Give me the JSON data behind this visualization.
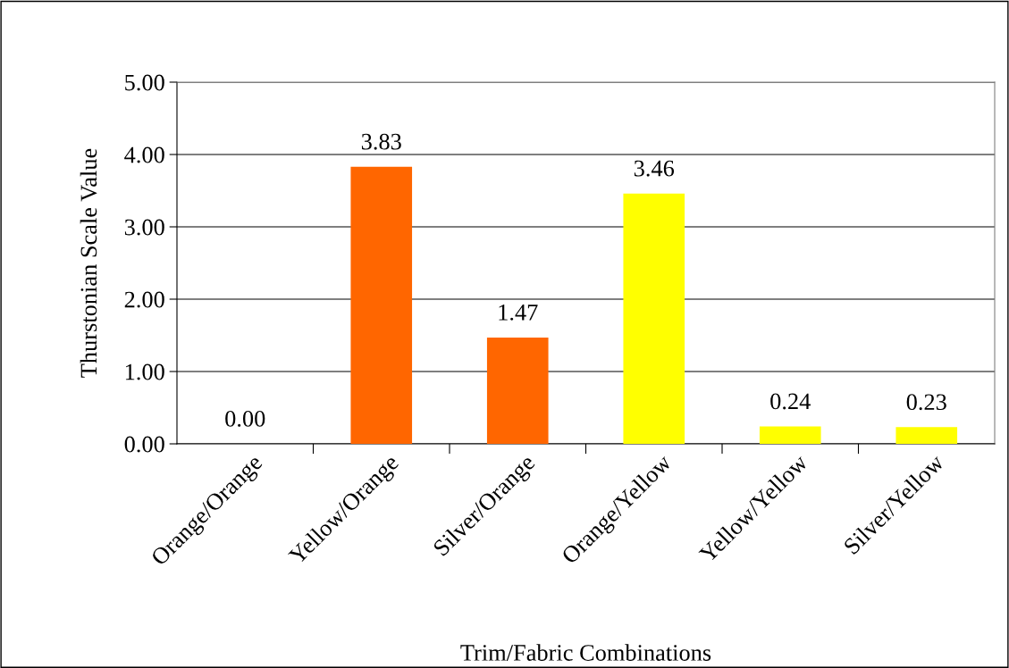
{
  "chart_data": {
    "type": "bar",
    "xlabel": "Trim/Fabric Combinations",
    "ylabel": "Thurstonian Scale Value",
    "categories": [
      "Orange/Orange",
      "Yellow/Orange",
      "Silver/Orange",
      "Orange/Yellow",
      "Yellow/Yellow",
      "Silver/Yellow"
    ],
    "values": [
      0.0,
      3.83,
      1.47,
      3.46,
      0.24,
      0.23
    ],
    "colors": [
      "#ff6600",
      "#ff6600",
      "#ff6600",
      "#ffff00",
      "#ffff00",
      "#ffff00"
    ],
    "value_labels": [
      "0.00",
      "3.83",
      "1.47",
      "3.46",
      "0.24",
      "0.23"
    ],
    "ylim": [
      0,
      5
    ],
    "yticks": [
      {
        "value": 0,
        "label": "0.00"
      },
      {
        "value": 1,
        "label": "1.00"
      },
      {
        "value": 2,
        "label": "2.00"
      },
      {
        "value": 3,
        "label": "3.00"
      },
      {
        "value": 4,
        "label": "4.00"
      },
      {
        "value": 5,
        "label": "5.00"
      }
    ],
    "grid": "y"
  }
}
